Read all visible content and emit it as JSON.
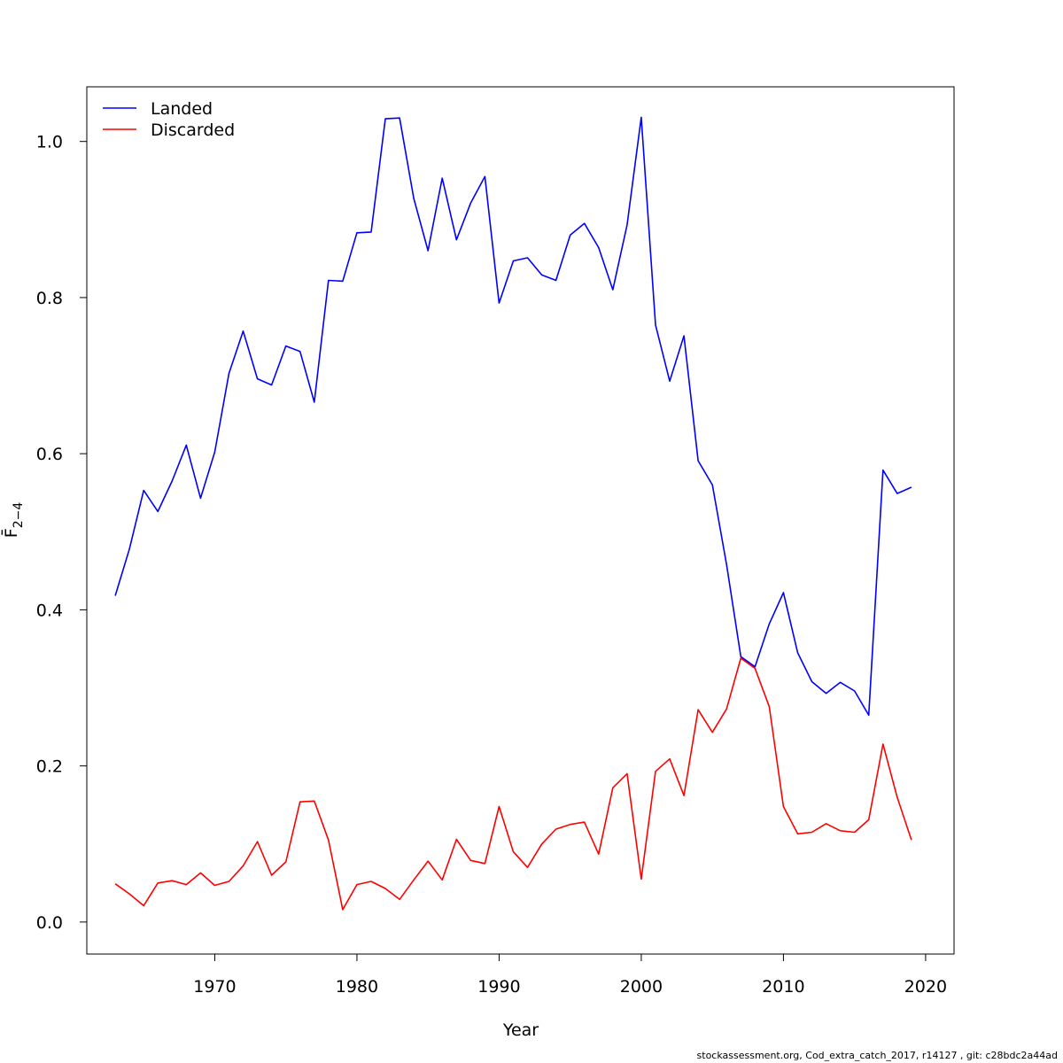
{
  "chart_data": {
    "type": "line",
    "xlabel": "Year",
    "ylabel": "F̄",
    "ylabel_sub": "2−4",
    "xlim": [
      1961,
      2022
    ],
    "ylim": [
      -0.041,
      1.07
    ],
    "xticks": [
      1970,
      1980,
      1990,
      2000,
      2010,
      2020
    ],
    "yticks": [
      0.0,
      0.2,
      0.4,
      0.6,
      0.8,
      1.0
    ],
    "ytick_labels": [
      "0.0",
      "0.2",
      "0.4",
      "0.6",
      "0.8",
      "1.0"
    ],
    "legend_position": "top-left",
    "grid": false,
    "x": [
      1963,
      1964,
      1965,
      1966,
      1967,
      1968,
      1969,
      1970,
      1971,
      1972,
      1973,
      1974,
      1975,
      1976,
      1977,
      1978,
      1979,
      1980,
      1981,
      1982,
      1983,
      1984,
      1985,
      1986,
      1987,
      1988,
      1989,
      1990,
      1991,
      1992,
      1993,
      1994,
      1995,
      1996,
      1997,
      1998,
      1999,
      2000,
      2001,
      2002,
      2003,
      2004,
      2005,
      2006,
      2007,
      2008,
      2009,
      2010,
      2011,
      2012,
      2013,
      2014,
      2015,
      2016,
      2017,
      2018,
      2019
    ],
    "series": [
      {
        "name": "Landed",
        "color": "#0000ff",
        "values": [
          0.418,
          0.478,
          0.553,
          0.526,
          0.565,
          0.611,
          0.543,
          0.602,
          0.703,
          0.757,
          0.696,
          0.688,
          0.738,
          0.731,
          0.666,
          0.822,
          0.821,
          0.883,
          0.884,
          1.029,
          1.03,
          0.927,
          0.86,
          0.953,
          0.874,
          0.921,
          0.955,
          0.793,
          0.847,
          0.851,
          0.829,
          0.822,
          0.88,
          0.895,
          0.864,
          0.81,
          0.893,
          1.031,
          0.765,
          0.693,
          0.751,
          0.591,
          0.56,
          0.458,
          0.34,
          0.327,
          0.382,
          0.422,
          0.345,
          0.308,
          0.293,
          0.307,
          0.296,
          0.265,
          0.579,
          0.549,
          0.557
        ]
      },
      {
        "name": "Discarded",
        "color": "#ff0000",
        "values": [
          0.049,
          0.036,
          0.021,
          0.05,
          0.053,
          0.048,
          0.063,
          0.047,
          0.052,
          0.072,
          0.103,
          0.06,
          0.077,
          0.154,
          0.155,
          0.105,
          0.016,
          0.048,
          0.052,
          0.043,
          0.029,
          0.054,
          0.078,
          0.054,
          0.106,
          0.079,
          0.075,
          0.148,
          0.09,
          0.07,
          0.1,
          0.119,
          0.125,
          0.128,
          0.087,
          0.172,
          0.19,
          0.055,
          0.193,
          0.209,
          0.162,
          0.272,
          0.243,
          0.273,
          0.338,
          0.325,
          0.276,
          0.148,
          0.113,
          0.115,
          0.126,
          0.117,
          0.115,
          0.131,
          0.228,
          0.16,
          0.105
        ]
      }
    ]
  },
  "footer": {
    "text": "stockassessment.org, Cod_extra_catch_2017, r14127 , git: c28bdc2a44ad"
  }
}
